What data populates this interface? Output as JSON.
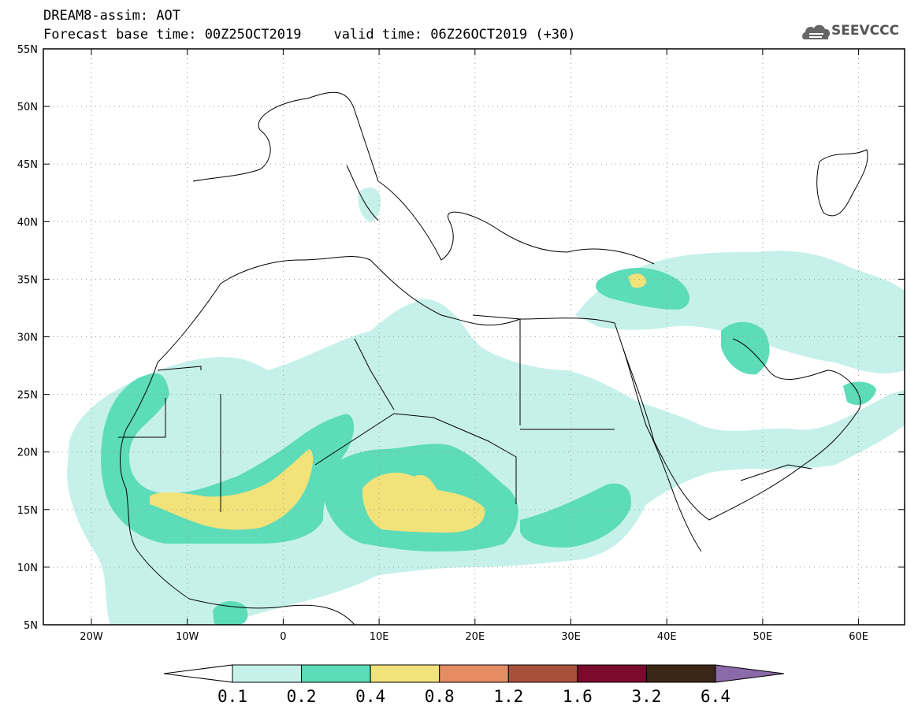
{
  "header": {
    "line1": "DREAM8-assim: AOT",
    "line2": "Forecast base time: 00Z25OCT2019    valid time: 06Z26OCT2019 (+30)"
  },
  "logo": {
    "text": "SEEVCCC",
    "icon": "cloud-icon"
  },
  "map": {
    "lat_labels": [
      "55N",
      "50N",
      "45N",
      "40N",
      "35N",
      "30N",
      "25N",
      "20N",
      "15N",
      "10N",
      "5N"
    ],
    "lon_labels": [
      "20W",
      "10W",
      "0",
      "10E",
      "20E",
      "30E",
      "40E",
      "50E",
      "60E"
    ]
  },
  "colorbar": {
    "labels": [
      "0.1",
      "0.2",
      "0.4",
      "0.8",
      "1.2",
      "1.6",
      "3.2",
      "6.4"
    ],
    "colors": [
      "#ffffff",
      "#c6f1ea",
      "#5cdcb8",
      "#f2e27a",
      "#e58c63",
      "#a9503b",
      "#7a0a2e",
      "#3a2617",
      "#8a6aa8"
    ]
  },
  "colors": {
    "aot_0_1": "#c6f1ea",
    "aot_0_2": "#5cdcb8",
    "aot_0_4": "#f2e27a",
    "aot_0_8": "#e58c63"
  }
}
